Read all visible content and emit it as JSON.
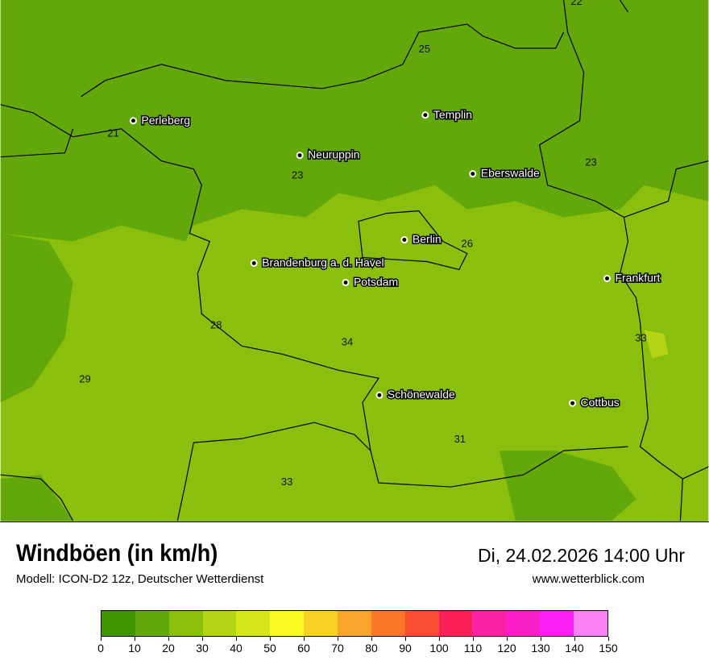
{
  "header": {
    "title": "Windböen (in km/h)",
    "subtitle": "Modell: ICON-D2 12z, Deutscher Wetterdienst",
    "datetime": "Di, 24.02.2026 14:00 Uhr",
    "website": "www.wetterblick.com"
  },
  "map": {
    "base_color": "#8bbf0e",
    "dark_color": "#63a80a",
    "light_color": "#b3d516",
    "cities": [
      {
        "name": "Perleberg"
      },
      {
        "name": "Templin"
      },
      {
        "name": "Neuruppin"
      },
      {
        "name": "Eberswalde"
      },
      {
        "name": "Berlin"
      },
      {
        "name": "Brandenburg a. d. Havel"
      },
      {
        "name": "Potsdam"
      },
      {
        "name": "Frankfurt"
      },
      {
        "name": "Schönewalde"
      },
      {
        "name": "Cottbus"
      }
    ],
    "values": [
      "22",
      "25",
      "21",
      "23",
      "23",
      "26",
      "28",
      "34",
      "33",
      "29",
      "31",
      "33"
    ]
  },
  "legend": {
    "ticks": [
      "0",
      "10",
      "20",
      "30",
      "40",
      "50",
      "60",
      "70",
      "80",
      "90",
      "100",
      "110",
      "120",
      "130",
      "140",
      "150"
    ],
    "colors": [
      "#3f9600",
      "#63a80a",
      "#8bbf0e",
      "#b3d516",
      "#d6e61c",
      "#fafa22",
      "#fad125",
      "#f9a42c",
      "#f9782a",
      "#f94d31",
      "#fa2057",
      "#f921a4",
      "#f920ca",
      "#f91ff5",
      "#fa80f5"
    ]
  }
}
